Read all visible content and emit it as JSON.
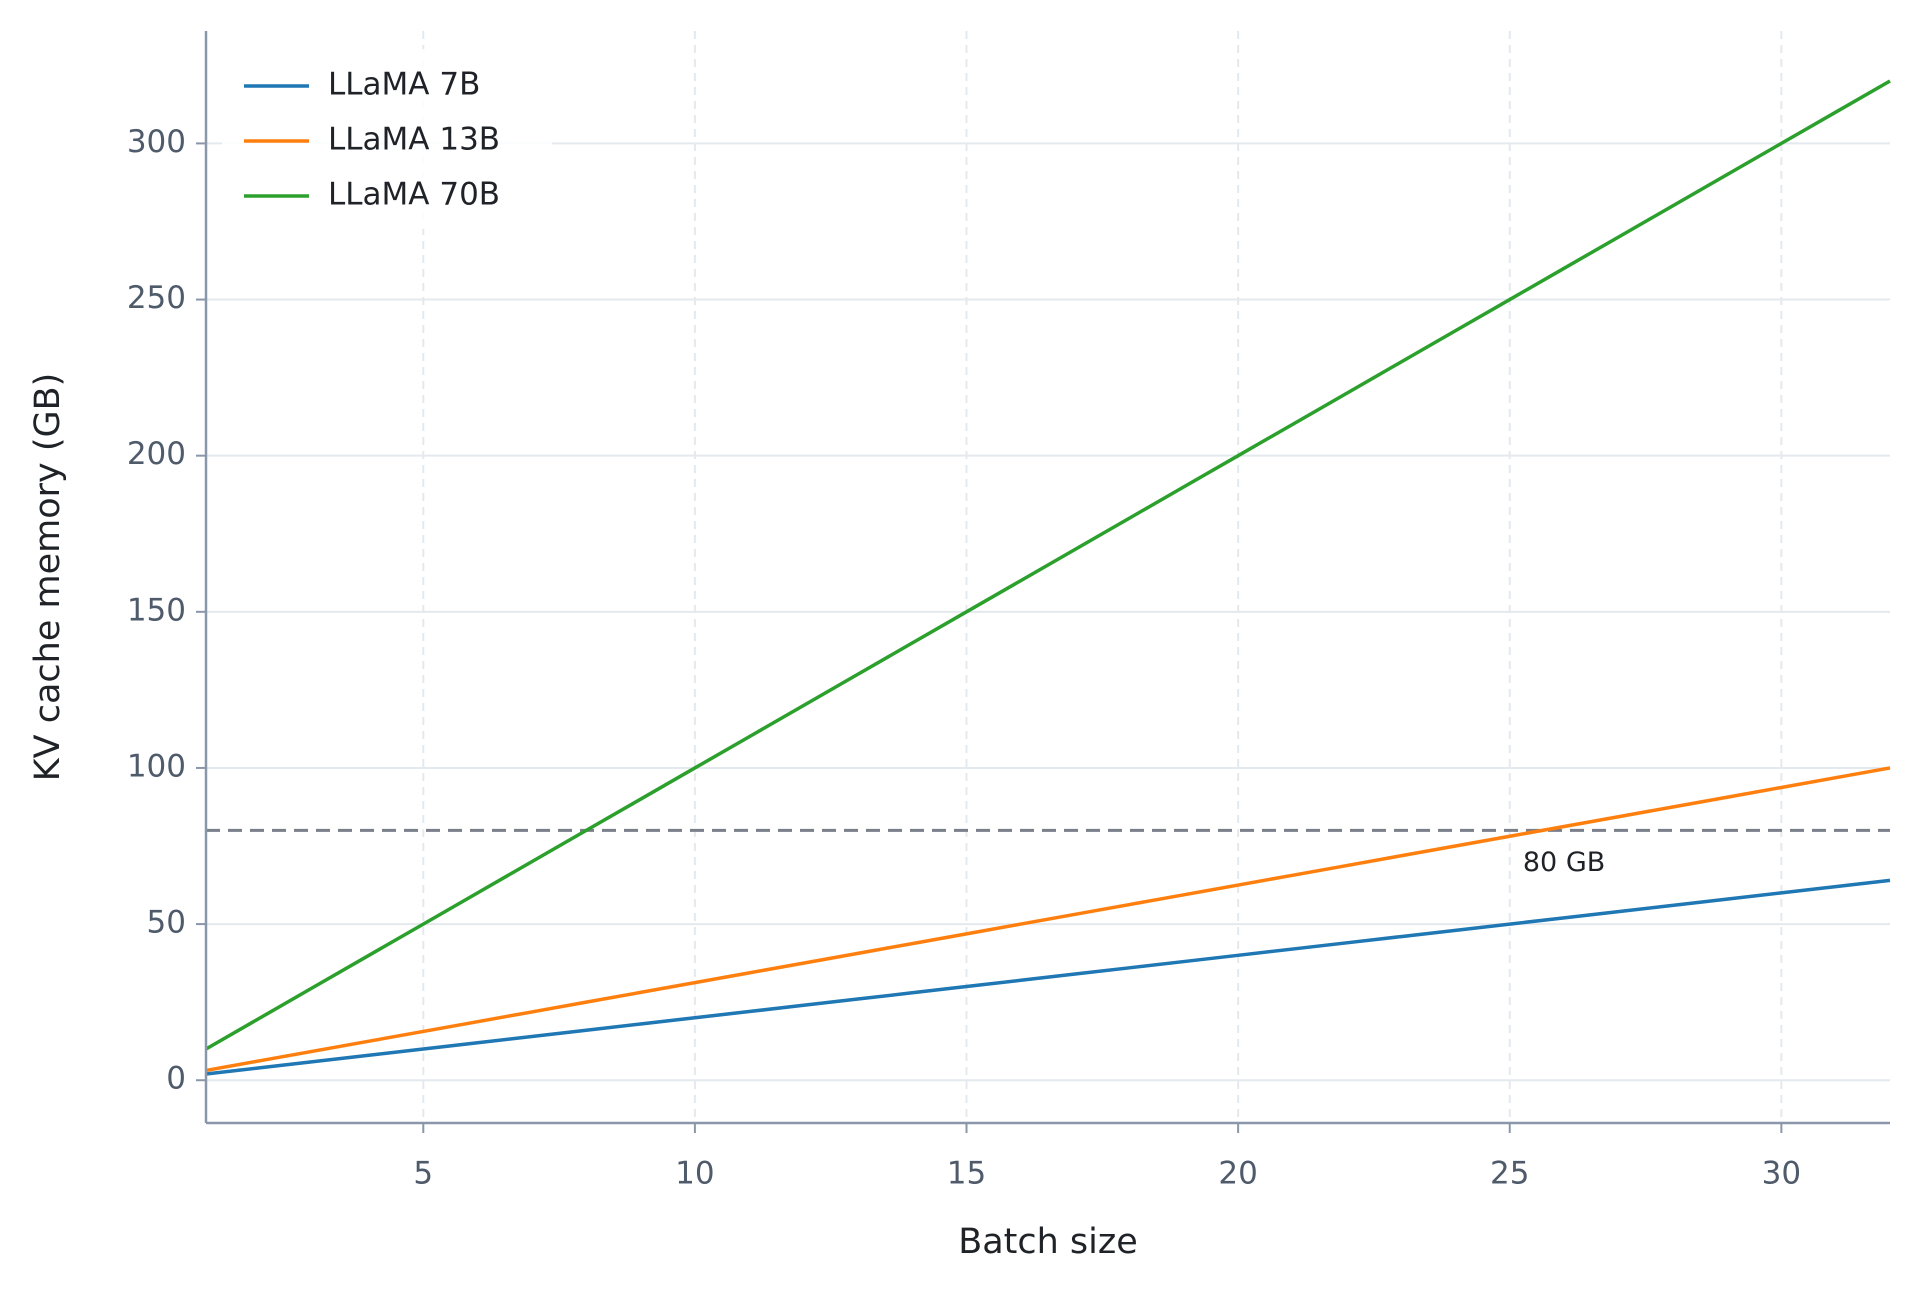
{
  "chart_data": {
    "type": "line",
    "xlabel": "Batch size",
    "ylabel": "KV cache memory (GB)",
    "x": [
      1,
      2,
      3,
      4,
      5,
      6,
      7,
      8,
      9,
      10,
      11,
      12,
      13,
      14,
      15,
      16,
      17,
      18,
      19,
      20,
      21,
      22,
      23,
      24,
      25,
      26,
      27,
      28,
      29,
      30,
      31,
      32
    ],
    "series": [
      {
        "name": "LLaMA 7B",
        "color": "#1f77b4",
        "values": [
          2,
          4,
          6,
          8,
          10,
          12,
          14,
          16,
          18,
          20,
          22,
          24,
          26,
          28,
          30,
          32,
          34,
          36,
          38,
          40,
          42,
          44,
          46,
          48,
          50,
          52,
          54,
          56,
          58,
          60,
          62,
          64
        ]
      },
      {
        "name": "LLaMA 13B",
        "color": "#ff7f0e",
        "values": [
          3.125,
          6.25,
          9.375,
          12.5,
          15.625,
          18.75,
          21.875,
          25,
          28.125,
          31.25,
          34.375,
          37.5,
          40.625,
          43.75,
          46.875,
          50,
          53.125,
          56.25,
          59.375,
          62.5,
          65.625,
          68.75,
          71.875,
          75,
          78.125,
          81.25,
          84.375,
          87.5,
          90.625,
          93.75,
          96.875,
          100
        ]
      },
      {
        "name": "LLaMA 70B",
        "color": "#2ca02c",
        "values": [
          10,
          20,
          30,
          40,
          50,
          60,
          70,
          80,
          90,
          100,
          110,
          120,
          130,
          140,
          150,
          160,
          170,
          180,
          190,
          200,
          210,
          220,
          230,
          240,
          250,
          260,
          270,
          280,
          290,
          300,
          310,
          320
        ]
      }
    ],
    "reference_line": {
      "value": 80,
      "label": "80 GB",
      "color": "#7a7f8a"
    },
    "xlim": [
      1,
      32
    ],
    "xticks": [
      5,
      10,
      15,
      20,
      25,
      30
    ],
    "ylim": [
      -13.7,
      336
    ],
    "yticks": [
      0,
      50,
      100,
      150,
      200,
      250,
      300
    ],
    "grid": true,
    "legend": "upper left"
  }
}
